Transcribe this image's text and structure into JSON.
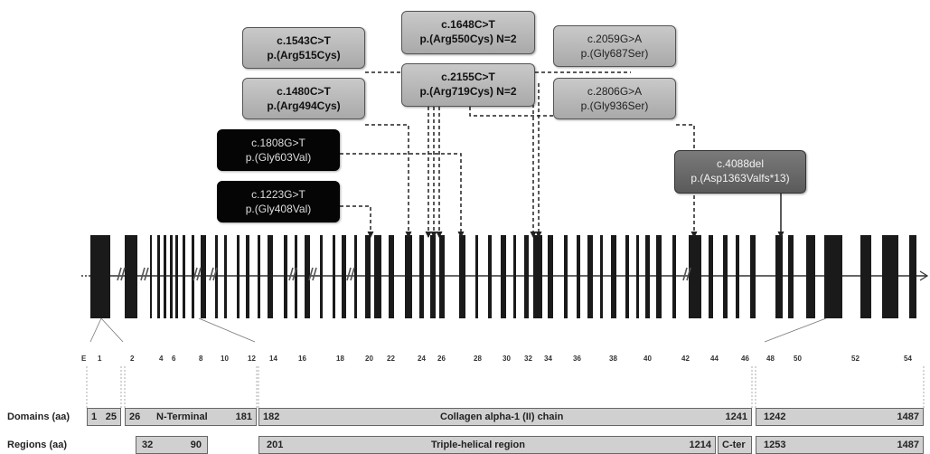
{
  "variants": [
    {
      "id": "v1543",
      "cdna": "c.1543C>T",
      "protein": "p.(Arg515Cys)",
      "style": "light"
    },
    {
      "id": "v1648",
      "cdna": "c.1648C>T",
      "protein": "p.(Arg550Cys) N=2",
      "style": "light"
    },
    {
      "id": "v2059",
      "cdna": "c.2059G>A",
      "protein": "p.(Gly687Ser)",
      "style": "lightn"
    },
    {
      "id": "v1480",
      "cdna": "c.1480C>T",
      "protein": "p.(Arg494Cys)",
      "style": "light"
    },
    {
      "id": "v2155",
      "cdna": "c.2155C>T",
      "protein": "p.(Arg719Cys) N=2",
      "style": "light"
    },
    {
      "id": "v2806",
      "cdna": "c.2806G>A",
      "protein": "p.(Gly936Ser)",
      "style": "lightn"
    },
    {
      "id": "v1808",
      "cdna": "c.1808G>T",
      "protein": "p.(Gly603Val)",
      "style": "dark"
    },
    {
      "id": "v4088",
      "cdna": "c.4088del",
      "protein": "p.(Asp1363Valfs*13)",
      "style": "mid"
    },
    {
      "id": "v1223",
      "cdna": "c.1223G>T",
      "protein": "p.(Gly408Val)",
      "style": "dark"
    }
  ],
  "exon_labels": [
    "E",
    "1",
    "2",
    "4",
    "6",
    "8",
    "10",
    "12",
    "14",
    "16",
    "18",
    "20",
    "22",
    "24",
    "26",
    "28",
    "30",
    "32",
    "34",
    "36",
    "38",
    "40",
    "42",
    "44",
    "46",
    "48",
    "50",
    "52",
    "54"
  ],
  "domains": {
    "label": "Domains (aa)",
    "segments": [
      {
        "start": "1",
        "end": "25",
        "name": ""
      },
      {
        "start": "26",
        "end": "181",
        "name": "N-Terminal"
      },
      {
        "start": "182",
        "end": "1241",
        "name": "Collagen  alpha-1 (II) chain"
      },
      {
        "start": "1242",
        "end": "1487",
        "name": ""
      }
    ]
  },
  "regions": {
    "label": "Regions (aa)",
    "segments": [
      {
        "start": "32",
        "end": "90",
        "name": ""
      },
      {
        "start": "201",
        "end": "1214",
        "name": "Triple-helical region"
      },
      {
        "start": "",
        "end": "",
        "name": "C-ter"
      },
      {
        "start": "1253",
        "end": "1487",
        "name": ""
      }
    ]
  },
  "colors": {
    "exon": "#1a1a1a",
    "line": "#333333",
    "seg": "#d0d0d0"
  }
}
